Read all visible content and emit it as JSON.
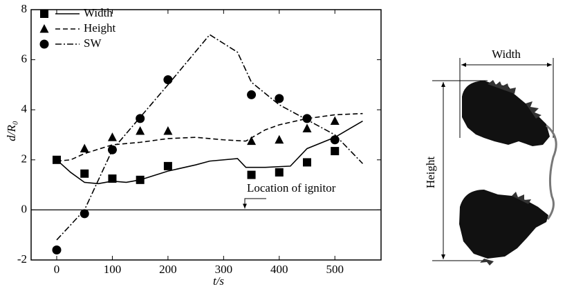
{
  "chart_data": {
    "type": "line",
    "x_label": "t/s",
    "y_label": "d/R₀",
    "xlim": [
      -46,
      583
    ],
    "ylim": [
      -2,
      8
    ],
    "xticks": [
      0,
      100,
      200,
      300,
      400,
      500
    ],
    "yticks": [
      -2,
      0,
      2,
      4,
      6,
      8
    ],
    "annotation": "Location of ignitor",
    "series": [
      {
        "name": "Width",
        "color": "#000",
        "marker": "square",
        "dash": "solid",
        "marker_x": [
          0,
          50,
          100,
          150,
          200,
          350,
          400,
          450,
          500
        ],
        "marker_values": [
          2.0,
          1.45,
          1.25,
          1.2,
          1.75,
          1.4,
          1.5,
          1.9,
          2.35
        ],
        "line_x": [
          0,
          25,
          50,
          75,
          100,
          125,
          150,
          200,
          250,
          275,
          325,
          340,
          375,
          420,
          450,
          500,
          550
        ],
        "line_values": [
          2.0,
          1.5,
          1.1,
          1.05,
          1.15,
          1.1,
          1.2,
          1.55,
          1.8,
          1.95,
          2.05,
          1.7,
          1.7,
          1.75,
          2.45,
          2.9,
          3.55
        ]
      },
      {
        "name": "Height",
        "color": "#000",
        "marker": "triangle",
        "dash": "dashed",
        "marker_x": [
          50,
          100,
          150,
          200,
          350,
          400,
          450,
          500
        ],
        "marker_values": [
          2.45,
          2.9,
          3.15,
          3.15,
          2.75,
          2.8,
          3.25,
          3.55
        ],
        "line_x": [
          0,
          25,
          50,
          100,
          150,
          200,
          250,
          300,
          340,
          375,
          400,
          450,
          500,
          550
        ],
        "line_values": [
          1.95,
          2.0,
          2.25,
          2.6,
          2.7,
          2.85,
          2.9,
          2.8,
          2.75,
          3.2,
          3.4,
          3.65,
          3.8,
          3.85
        ]
      },
      {
        "name": "SW",
        "color": "#000",
        "marker": "circle",
        "dash": "dashdot",
        "marker_x": [
          0,
          50,
          100,
          150,
          200,
          350,
          400,
          450,
          500
        ],
        "marker_values": [
          -1.6,
          -0.15,
          2.4,
          3.65,
          5.2,
          4.6,
          4.45,
          3.65,
          2.8
        ],
        "line_x": [
          0,
          50,
          75,
          100,
          150,
          200,
          275,
          325,
          350,
          400,
          450,
          500,
          550
        ],
        "line_values": [
          -1.2,
          0,
          1.2,
          2.4,
          3.7,
          5.0,
          7.0,
          6.3,
          5.1,
          4.2,
          3.6,
          3.0,
          1.85
        ]
      }
    ]
  },
  "diagram": {
    "width_label": "Width",
    "height_label": "Height"
  }
}
